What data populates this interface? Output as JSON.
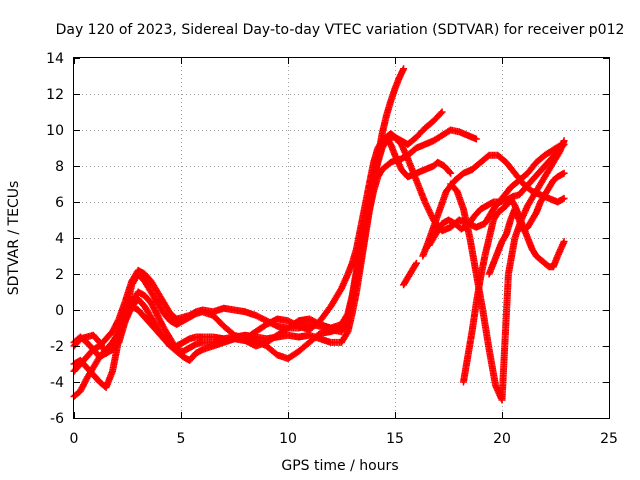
{
  "chart_data": {
    "type": "scatter",
    "title": "Day 120 of 2023, Sidereal Day-to-day VTEC variation (SDTVAR) for receiver p012",
    "xlabel": "GPS time / hours",
    "ylabel": "SDTVAR / TECUs",
    "xlim": [
      0,
      25
    ],
    "ylim": [
      -6,
      14
    ],
    "x_ticks": [
      "0",
      "5",
      "10",
      "15",
      "20",
      "25"
    ],
    "y_ticks": [
      "-6",
      "-4",
      "-2",
      "0",
      "2",
      "4",
      "6",
      "8",
      "10",
      "12",
      "14"
    ],
    "grid": true,
    "marker": "+",
    "color": "#ff0000",
    "series": [
      {
        "x": [
          0.0,
          0.3,
          0.6,
          0.9,
          1.2,
          1.5,
          1.8,
          2.1,
          2.4,
          2.7,
          3.0,
          3.3,
          3.6,
          3.9,
          4.2,
          4.5,
          4.8,
          5.1,
          5.4,
          5.7,
          6.0,
          6.5,
          7.0,
          7.5,
          8.0,
          8.5,
          9.0,
          9.5,
          10.0,
          10.5,
          11.0,
          11.5,
          12.0,
          12.5,
          12.8,
          13.0,
          13.2,
          13.4,
          13.6,
          13.8,
          14.0,
          14.2,
          14.4,
          14.6,
          14.8,
          15.0,
          15.2,
          15.4
        ],
        "y": [
          -4.8,
          -4.5,
          -3.8,
          -3.2,
          -2.6,
          -2.2,
          -1.8,
          -1.2,
          -0.6,
          0.2,
          0.6,
          0.2,
          -0.4,
          -1.0,
          -1.6,
          -2.0,
          -2.0,
          -1.8,
          -1.6,
          -1.5,
          -1.5,
          -1.5,
          -1.6,
          -1.5,
          -1.4,
          -1.5,
          -1.6,
          -1.5,
          -1.4,
          -1.5,
          -1.4,
          -1.6,
          -1.8,
          -1.8,
          -1.2,
          -0.2,
          1.0,
          2.5,
          4.0,
          5.5,
          7.0,
          8.5,
          9.8,
          10.8,
          11.6,
          12.3,
          12.9,
          13.4
        ]
      },
      {
        "x": [
          0.0,
          0.3,
          0.6,
          0.9,
          1.2,
          1.5,
          1.8,
          2.1,
          2.4,
          2.7,
          3.0,
          3.3,
          3.6,
          3.9,
          4.2,
          4.5,
          4.8,
          5.1,
          5.4,
          5.7,
          6.0,
          6.5,
          7.0,
          7.5,
          8.0,
          8.5,
          9.0,
          9.5,
          10.0,
          10.5,
          11.0,
          11.5,
          12.0,
          12.5,
          12.8,
          13.0,
          13.2,
          13.4,
          13.6,
          13.8,
          14.0,
          14.2,
          14.4,
          14.6,
          14.8,
          15.0,
          15.3,
          15.6,
          16.0,
          16.4,
          16.8,
          17.2,
          17.6,
          18.0,
          18.4,
          18.8
        ],
        "y": [
          -3.4,
          -3.0,
          -2.6,
          -2.2,
          -2.0,
          -1.6,
          -1.2,
          -0.5,
          0.5,
          1.6,
          2.2,
          2.0,
          1.6,
          1.0,
          0.4,
          -0.2,
          -0.5,
          -0.4,
          -0.3,
          -0.1,
          0.0,
          -0.1,
          0.1,
          0.0,
          -0.1,
          -0.3,
          -0.6,
          -0.9,
          -1.0,
          -1.0,
          -0.8,
          -0.9,
          -1.1,
          -1.2,
          -0.6,
          0.4,
          1.6,
          2.8,
          4.2,
          5.5,
          6.6,
          7.4,
          7.8,
          8.0,
          8.2,
          8.3,
          8.4,
          8.6,
          9.0,
          9.2,
          9.4,
          9.7,
          10.0,
          9.9,
          9.7,
          9.5
        ]
      },
      {
        "x": [
          0.0,
          0.3,
          0.6,
          0.9,
          1.2,
          1.5,
          1.8,
          2.1,
          2.4,
          2.7,
          3.0,
          3.3,
          3.6,
          3.9,
          4.2,
          4.5,
          4.8,
          5.1,
          5.4,
          5.7,
          6.0,
          6.5,
          7.0,
          7.5,
          8.0,
          8.5,
          9.0,
          9.5,
          10.0,
          10.5,
          11.0,
          11.5,
          12.0,
          12.5,
          12.8,
          13.0,
          13.2,
          13.4,
          13.6,
          13.8,
          14.0,
          14.2,
          14.4,
          14.6,
          14.8,
          15.0,
          15.3,
          15.6,
          16.0,
          16.4,
          16.8,
          17.2
        ],
        "y": [
          -1.8,
          -1.5,
          -1.8,
          -2.2,
          -2.6,
          -2.4,
          -2.0,
          -1.2,
          -0.4,
          0.4,
          1.0,
          0.8,
          0.4,
          -0.3,
          -1.0,
          -1.6,
          -2.2,
          -2.3,
          -2.1,
          -1.9,
          -1.8,
          -1.8,
          -1.7,
          -1.6,
          -1.5,
          -1.7,
          -2.0,
          -2.5,
          -2.7,
          -2.3,
          -1.8,
          -1.3,
          -1.2,
          -1.0,
          -0.4,
          0.6,
          2.0,
          3.4,
          4.8,
          6.0,
          7.2,
          8.2,
          9.0,
          9.4,
          9.6,
          9.6,
          9.4,
          9.2,
          9.6,
          10.1,
          10.5,
          11.0
        ]
      },
      {
        "x": [
          0.0,
          0.3,
          0.6,
          0.9,
          1.2,
          1.5,
          1.8,
          2.1,
          2.4,
          2.7,
          3.0,
          3.3,
          3.6,
          3.9,
          4.2,
          4.5,
          4.8,
          5.1,
          5.4,
          5.7,
          6.0,
          6.5,
          7.0,
          7.5,
          8.0,
          8.5,
          9.0,
          9.5,
          10.0,
          10.5,
          11.0,
          11.5,
          12.0,
          12.5,
          12.8,
          13.0,
          13.2,
          13.4,
          13.6,
          13.8,
          14.0,
          14.2,
          14.4,
          14.6,
          14.8,
          15.0,
          15.3,
          15.6,
          16.0,
          16.4,
          16.8,
          17.0,
          17.3,
          17.6
        ],
        "y": [
          -3.0,
          -2.8,
          -3.2,
          -3.6,
          -4.0,
          -4.3,
          -3.4,
          -1.6,
          -0.2,
          1.4,
          2.0,
          1.6,
          1.0,
          0.4,
          -0.2,
          -0.6,
          -0.8,
          -0.6,
          -0.4,
          -0.2,
          -0.1,
          -0.3,
          -0.9,
          -1.4,
          -1.6,
          -1.2,
          -0.8,
          -0.5,
          -0.6,
          -0.9,
          -1.1,
          -0.6,
          0.2,
          1.2,
          2.0,
          2.6,
          3.4,
          4.6,
          5.8,
          7.0,
          8.2,
          9.0,
          9.4,
          9.6,
          9.2,
          8.6,
          7.8,
          7.4,
          7.6,
          7.8,
          8.0,
          8.2,
          8.0,
          7.6
        ]
      },
      {
        "x": [
          0.0,
          0.3,
          0.6,
          0.9,
          1.2,
          1.5,
          1.8,
          2.1,
          2.4,
          2.7,
          3.0,
          3.3,
          3.6,
          3.9,
          4.2,
          4.5,
          4.8,
          5.1,
          5.4,
          5.7,
          6.0,
          6.5,
          7.0,
          7.5,
          8.0,
          8.5,
          9.0,
          9.5,
          10.0,
          10.5,
          11.0,
          11.5,
          12.0,
          12.5,
          12.8,
          13.0,
          13.2,
          13.4,
          13.6,
          13.8,
          14.0,
          14.2,
          14.4,
          14.6,
          14.8,
          15.0,
          15.3,
          15.6,
          16.0,
          16.4,
          16.8,
          17.2,
          17.6,
          18.0,
          18.4,
          18.8,
          19.2,
          19.6,
          20.0,
          20.4,
          20.8,
          21.2,
          21.6,
          22.0,
          22.4,
          22.8
        ],
        "y": [
          -2.0,
          -1.6,
          -1.5,
          -1.4,
          -1.8,
          -2.4,
          -2.2,
          -1.8,
          -0.6,
          0.2,
          0.0,
          -0.4,
          -0.8,
          -1.2,
          -1.6,
          -2.0,
          -2.3,
          -2.6,
          -2.8,
          -2.4,
          -2.2,
          -2.0,
          -1.8,
          -1.6,
          -1.7,
          -2.0,
          -1.8,
          -1.4,
          -1.0,
          -0.6,
          -0.5,
          -0.8,
          -1.0,
          -0.8,
          -0.2,
          0.8,
          2.2,
          3.6,
          5.0,
          6.2,
          7.4,
          8.4,
          9.2,
          9.6,
          9.8,
          9.6,
          9.2,
          8.4,
          7.2,
          6.0,
          5.0,
          4.4,
          4.6,
          5.0,
          4.8,
          4.6,
          4.8,
          5.6,
          6.2,
          6.8,
          7.2,
          7.6,
          8.2,
          8.6,
          8.9,
          9.2
        ]
      },
      {
        "x": [
          15.4,
          15.6,
          15.8,
          16.0
        ],
        "y": [
          1.4,
          1.8,
          2.2,
          2.6
        ]
      },
      {
        "x": [
          16.3,
          16.5,
          16.8,
          17.1,
          17.4,
          17.8,
          18.2,
          18.6,
          19.0,
          19.4,
          19.8,
          20.2,
          20.6,
          21.0,
          21.4,
          21.8,
          22.2,
          22.6,
          22.9
        ],
        "y": [
          3.0,
          3.6,
          4.6,
          5.6,
          6.6,
          7.2,
          7.6,
          7.8,
          8.2,
          8.6,
          8.6,
          8.2,
          7.6,
          7.0,
          6.6,
          6.4,
          6.2,
          6.0,
          6.2
        ]
      },
      {
        "x": [
          16.6,
          16.9,
          17.2,
          17.5,
          17.8,
          18.1,
          18.4,
          18.7,
          19.0,
          19.3,
          19.6,
          19.9,
          20.2,
          20.5,
          20.8,
          21.1,
          21.4,
          21.7,
          22.0,
          22.3,
          22.6,
          22.9
        ],
        "y": [
          3.6,
          4.2,
          4.8,
          5.0,
          4.8,
          4.5,
          4.7,
          5.2,
          5.6,
          5.8,
          6.0,
          6.0,
          6.1,
          6.3,
          6.4,
          6.8,
          7.2,
          7.6,
          8.0,
          8.4,
          8.8,
          9.2
        ]
      },
      {
        "x": [
          17.6,
          17.9,
          18.2,
          18.5,
          18.8,
          19.1,
          19.4,
          19.7,
          20.0,
          20.3,
          20.6,
          20.9,
          21.2,
          21.5,
          21.8,
          22.1,
          22.4,
          22.7,
          22.9
        ],
        "y": [
          7.0,
          6.6,
          5.6,
          4.0,
          2.0,
          0.0,
          -2.2,
          -4.2,
          -5.0,
          2.0,
          4.0,
          5.0,
          5.8,
          6.4,
          7.0,
          7.6,
          8.2,
          8.8,
          9.4
        ]
      },
      {
        "x": [
          18.2,
          18.4,
          18.6,
          18.8,
          19.0,
          19.2,
          19.4,
          19.6,
          19.8,
          20.0,
          20.2,
          20.4,
          20.6,
          20.8,
          21.0,
          21.2,
          21.4,
          21.6,
          21.8,
          22.0,
          22.2,
          22.4,
          22.6,
          22.9
        ],
        "y": [
          -4.0,
          -2.6,
          -1.2,
          0.4,
          1.8,
          3.0,
          4.0,
          5.0,
          5.4,
          5.6,
          5.8,
          6.2,
          5.8,
          5.2,
          4.6,
          4.0,
          3.4,
          3.0,
          2.8,
          2.6,
          2.4,
          2.4,
          3.0,
          3.8
        ]
      },
      {
        "x": [
          19.4,
          19.6,
          19.8,
          20.0,
          20.2,
          20.4,
          20.6,
          20.8,
          21.0,
          21.2,
          21.4,
          21.6,
          21.8,
          22.0,
          22.2,
          22.4,
          22.6,
          22.9
        ],
        "y": [
          2.0,
          2.6,
          3.2,
          3.8,
          4.2,
          5.0,
          5.6,
          5.0,
          4.4,
          4.6,
          5.0,
          5.4,
          6.0,
          6.4,
          6.8,
          7.2,
          7.4,
          7.6
        ]
      }
    ]
  }
}
